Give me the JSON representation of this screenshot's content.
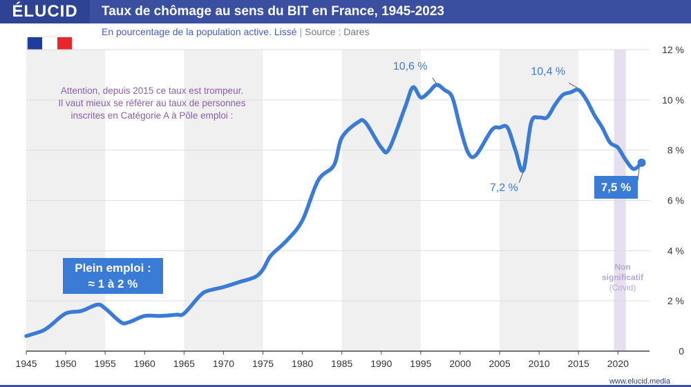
{
  "header": {
    "logo": "ÉLUCID",
    "title": "Taux de chômage au sens du BIT en France, 1945-2023"
  },
  "subtitle": {
    "text": "En pourcentage de la population active. Lissé",
    "separator": "|",
    "source": "Source : Dares"
  },
  "flag": {
    "colors": [
      "#1f3c9a",
      "#ffffff",
      "#e8262c"
    ]
  },
  "notice": {
    "lines": [
      "Attention, depuis 2015 ce taux est trompeur.",
      "Il vaut mieux se référer au taux de personnes",
      "inscrites en Catégorie A à Pôle emploi :"
    ]
  },
  "plein_emploi": {
    "line1": "Plein emploi :",
    "line2": "≈ 1 à 2 %"
  },
  "last_value_label": "7,5 %",
  "covid_note": {
    "line1": "Non",
    "line2": "significatif",
    "line3": "(Covid)"
  },
  "footer": {
    "site": "www.elucid.media"
  },
  "colors": {
    "line": "#3a7bd5",
    "band": "#f0f0f0",
    "covid": "#e6dff0",
    "notice": "#8a5ea8",
    "header": "#3a4fa0"
  },
  "chart_data": {
    "type": "line",
    "title": "Taux de chômage au sens du BIT en France, 1945-2023",
    "xlabel": "",
    "ylabel": "",
    "xlim": [
      1945,
      2024
    ],
    "ylim": [
      0,
      12
    ],
    "x_ticks": [
      1945,
      1950,
      1955,
      1960,
      1965,
      1970,
      1975,
      1980,
      1985,
      1990,
      1995,
      2000,
      2005,
      2010,
      2015,
      2020
    ],
    "y_ticks": [
      {
        "value": 0,
        "label": "0"
      },
      {
        "value": 2,
        "label": "2 %"
      },
      {
        "value": 4,
        "label": "4 %"
      },
      {
        "value": 6,
        "label": "6 %"
      },
      {
        "value": 8,
        "label": "8 %"
      },
      {
        "value": 10,
        "label": "10 %"
      },
      {
        "value": 12,
        "label": "12 %"
      }
    ],
    "shaded_decades": [
      [
        1945,
        1955
      ],
      [
        1965,
        1975
      ],
      [
        1985,
        1995
      ],
      [
        2005,
        2015
      ]
    ],
    "covid_band": [
      2019.5,
      2021
    ],
    "series": [
      {
        "name": "Taux de chômage",
        "x": [
          1945,
          1947,
          1948,
          1950,
          1952,
          1954,
          1955,
          1957,
          1958,
          1960,
          1962,
          1964,
          1965,
          1967,
          1968,
          1970,
          1972,
          1974,
          1975,
          1976,
          1978,
          1980,
          1982,
          1984,
          1985,
          1987,
          1988,
          1990,
          1991,
          1993,
          1994,
          1995,
          1996,
          1997,
          1998,
          1999,
          2000,
          2001,
          2002,
          2004,
          2005,
          2006,
          2007,
          2008,
          2009,
          2010,
          2011,
          2012,
          2013,
          2014,
          2015,
          2016,
          2017,
          2018,
          2019,
          2020,
          2021,
          2022,
          2023
        ],
        "values": [
          0.6,
          0.8,
          1.0,
          1.5,
          1.6,
          1.85,
          1.7,
          1.15,
          1.15,
          1.4,
          1.4,
          1.45,
          1.5,
          2.2,
          2.4,
          2.55,
          2.75,
          2.95,
          3.25,
          3.8,
          4.4,
          5.2,
          6.8,
          7.4,
          8.5,
          9.1,
          9.1,
          8.1,
          8.05,
          9.7,
          10.5,
          10.1,
          10.3,
          10.6,
          10.4,
          10.1,
          8.9,
          7.9,
          7.8,
          8.8,
          8.9,
          8.9,
          8.0,
          7.2,
          9.1,
          9.3,
          9.3,
          9.8,
          10.2,
          10.3,
          10.4,
          10.0,
          9.4,
          8.9,
          8.3,
          8.1,
          7.6,
          7.25,
          7.5
        ]
      }
    ],
    "annotations": [
      {
        "x": 1997,
        "y": 10.6,
        "label": "10,6 %"
      },
      {
        "x": 2008,
        "y": 7.2,
        "label": "7,2 %"
      },
      {
        "x": 2015,
        "y": 10.4,
        "label": "10,4 %"
      },
      {
        "x": 2023,
        "y": 7.5,
        "label": "7,5 %"
      }
    ]
  }
}
